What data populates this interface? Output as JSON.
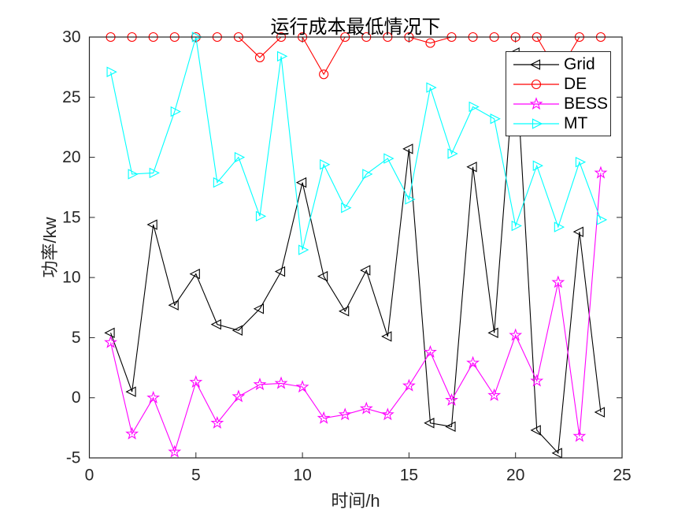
{
  "figure": {
    "background": "#ffffff",
    "axis_color": "#262626"
  },
  "chart_data": {
    "type": "line",
    "title": "运行成本最低情况下",
    "xlabel": "时间/h",
    "ylabel": "功率/kw",
    "xlim": [
      0,
      25
    ],
    "ylim": [
      -5,
      30
    ],
    "x_ticks": [
      0,
      5,
      10,
      15,
      20,
      25
    ],
    "y_ticks": [
      -5,
      0,
      5,
      10,
      15,
      20,
      25,
      30
    ],
    "grid": false,
    "box": true,
    "legend": {
      "position": "top-right-inside",
      "background": "#ffffff",
      "border_color": "#262626"
    },
    "x": [
      1,
      2,
      3,
      4,
      5,
      6,
      7,
      8,
      9,
      10,
      11,
      12,
      13,
      14,
      15,
      16,
      17,
      18,
      19,
      20,
      21,
      22,
      23,
      24
    ],
    "series": [
      {
        "name": "Grid",
        "color": "#000000",
        "marker": "triangle-left",
        "values": [
          5.4,
          0.5,
          14.4,
          7.7,
          10.3,
          6.1,
          5.6,
          7.4,
          10.5,
          17.9,
          10.1,
          7.2,
          10.6,
          5.1,
          20.7,
          -2.1,
          -2.4,
          19.2,
          5.4,
          28.7,
          -2.7,
          -4.6,
          13.8,
          -1.2
        ]
      },
      {
        "name": "DE",
        "color": "#ff0000",
        "marker": "circle",
        "values": [
          30,
          30,
          30,
          30,
          30,
          30,
          30,
          28.3,
          30,
          30,
          26.9,
          30,
          30,
          30,
          30,
          29.5,
          30,
          30,
          30,
          30,
          30,
          27,
          30,
          30
        ]
      },
      {
        "name": "BESS",
        "color": "#ff00ff",
        "marker": "pentagram",
        "values": [
          4.6,
          -3,
          0,
          -4.5,
          1.3,
          -2.1,
          0.1,
          1.1,
          1.2,
          0.9,
          -1.7,
          -1.4,
          -0.9,
          -1.4,
          1,
          3.8,
          -0.2,
          2.9,
          0.2,
          5.2,
          1.4,
          9.6,
          -3.2,
          18.7
        ]
      },
      {
        "name": "MT",
        "color": "#00ffff",
        "marker": "triangle-right",
        "values": [
          27.1,
          18.6,
          18.7,
          23.8,
          30,
          17.9,
          20,
          15.1,
          28.4,
          12.3,
          19.4,
          15.8,
          18.6,
          19.9,
          16.5,
          25.8,
          20.3,
          24.2,
          23.2,
          14.3,
          19.3,
          14.2,
          19.6,
          14.8
        ]
      }
    ]
  }
}
